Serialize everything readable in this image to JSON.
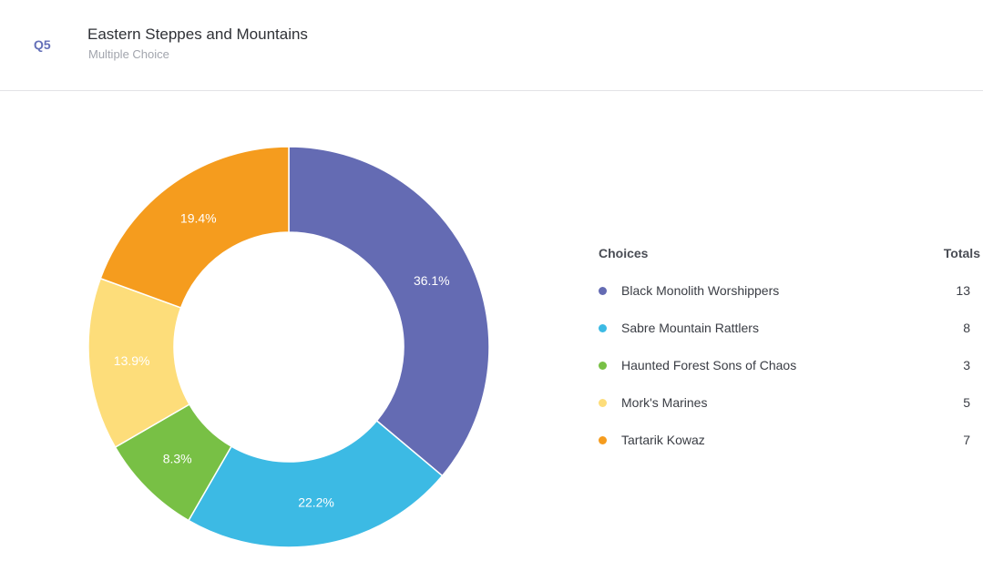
{
  "header": {
    "qnum": "Q5",
    "title": "Eastern Steppes and Mountains",
    "subtitle": "Multiple Choice"
  },
  "legend": {
    "choices_header": "Choices",
    "totals_header": "Totals"
  },
  "chart_data": {
    "type": "pie",
    "donut": true,
    "categories": [
      "Black Monolith Worshippers",
      "Sabre Mountain Rattlers",
      "Haunted Forest Sons of Chaos",
      "Mork's Marines",
      "Tartarik Kowaz"
    ],
    "values": [
      13,
      8,
      3,
      5,
      7
    ],
    "percent_labels": [
      "36.1%",
      "22.2%",
      "8.3%",
      "13.9%",
      "19.4%"
    ],
    "colors": [
      "#646bb3",
      "#3cbae4",
      "#78c045",
      "#fddd7a",
      "#f59c1e"
    ]
  }
}
